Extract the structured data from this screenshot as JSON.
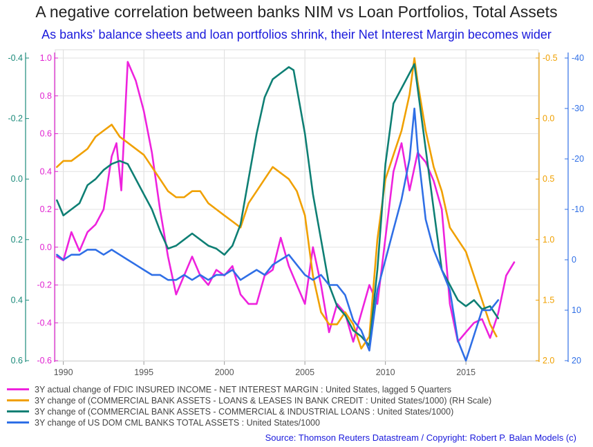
{
  "title": "A negative correlation between banks NIM vs Loan Portfolios, Total Assets",
  "subtitle": "As banks' balance sheets and loan portfolios shrink, their Net Interest Margin becomes wider",
  "source": "Source: Thomson Reuters Datastream / Copyright: Robert P. Balan Models (c)",
  "chart_data": {
    "type": "line",
    "x_range": [
      1989.5,
      2019.5
    ],
    "x_ticks": [
      1990,
      1995,
      2000,
      2005,
      2010,
      2015
    ],
    "axes": [
      {
        "id": "far_left",
        "side": "left",
        "color": "#1a8a7a",
        "range": [
          -0.4,
          0.6
        ],
        "inverted": true,
        "ticks": [
          "-0.4",
          "-0.2",
          "0.0",
          "0.2",
          "0.4",
          "0.6"
        ]
      },
      {
        "id": "left",
        "side": "left",
        "color": "#e020d0",
        "range": [
          -0.6,
          1.0
        ],
        "inverted": false,
        "ticks": [
          "1.0",
          "0.8",
          "0.6",
          "0.4",
          "0.2",
          "0.0",
          "-0.2",
          "-0.4",
          "-0.6"
        ]
      },
      {
        "id": "right",
        "side": "right",
        "color": "#f0a000",
        "range": [
          -0.5,
          2.0
        ],
        "inverted": true,
        "ticks": [
          "-0.5",
          "0.0",
          "0.5",
          "1.0",
          "1.5",
          "2.0"
        ]
      },
      {
        "id": "far_right",
        "side": "right",
        "color": "#2f6fe6",
        "range": [
          -40,
          20
        ],
        "inverted": true,
        "ticks": [
          "-40",
          "-30",
          "-20",
          "-10",
          "0",
          "10",
          "20"
        ]
      }
    ],
    "series": [
      {
        "name": "3Y actual change of FDIC INSURED INCOME - NET INTEREST MARGIN : United States, lagged 5 Quarters",
        "color": "#ee22dd",
        "axis": "left",
        "x": [
          1989.6,
          1990.0,
          1990.5,
          1991.0,
          1991.5,
          1992.0,
          1992.5,
          1993.0,
          1993.3,
          1993.6,
          1994.0,
          1994.5,
          1995.0,
          1995.5,
          1996.0,
          1996.5,
          1997.0,
          1997.5,
          1998.0,
          1998.5,
          1999.0,
          1999.5,
          2000.0,
          2000.5,
          2001.0,
          2001.5,
          2002.0,
          2002.5,
          2003.0,
          2003.5,
          2004.0,
          2004.5,
          2005.0,
          2005.5,
          2006.0,
          2006.5,
          2007.0,
          2007.5,
          2008.0,
          2008.5,
          2009.0,
          2009.5,
          2010.0,
          2010.5,
          2011.0,
          2011.5,
          2012.0,
          2012.5,
          2013.0,
          2013.5,
          2014.0,
          2014.5,
          2015.0,
          2015.5,
          2016.0,
          2016.5,
          2017.0,
          2017.5,
          2018.0
        ],
        "y": [
          -0.05,
          -0.07,
          0.08,
          -0.02,
          0.08,
          0.12,
          0.2,
          0.48,
          0.55,
          0.3,
          0.98,
          0.88,
          0.72,
          0.5,
          0.2,
          -0.05,
          -0.25,
          -0.15,
          -0.05,
          -0.15,
          -0.2,
          -0.12,
          -0.15,
          -0.1,
          -0.25,
          -0.3,
          -0.3,
          -0.15,
          -0.12,
          0.05,
          -0.1,
          -0.2,
          -0.3,
          0.0,
          -0.2,
          -0.45,
          -0.3,
          -0.35,
          -0.5,
          -0.35,
          -0.2,
          -0.3,
          0.05,
          0.4,
          0.55,
          0.3,
          0.5,
          0.45,
          0.35,
          0.2,
          -0.3,
          -0.5,
          -0.45,
          -0.4,
          -0.38,
          -0.48,
          -0.35,
          -0.15,
          -0.08
        ]
      },
      {
        "name": "3Y change of (COMMERCIAL BANK ASSETS - LOANS & LEASES IN BANK CREDIT : United States/1000) (RH Scale)",
        "color": "#f0a000",
        "axis": "right",
        "x": [
          1989.6,
          1990.0,
          1990.5,
          1991.0,
          1991.5,
          1992.0,
          1992.5,
          1993.0,
          1993.5,
          1994.0,
          1994.5,
          1995.0,
          1995.5,
          1996.0,
          1996.5,
          1997.0,
          1997.5,
          1998.0,
          1998.5,
          1999.0,
          1999.5,
          2000.0,
          2000.5,
          2001.0,
          2001.5,
          2002.0,
          2002.5,
          2003.0,
          2003.5,
          2004.0,
          2004.5,
          2005.0,
          2005.5,
          2006.0,
          2006.5,
          2007.0,
          2007.5,
          2008.0,
          2008.5,
          2009.0,
          2009.5,
          2010.0,
          2010.5,
          2011.0,
          2011.5,
          2011.8,
          2012.0,
          2012.5,
          2013.0,
          2013.5,
          2014.0,
          2014.5,
          2015.0,
          2015.5,
          2016.0,
          2016.5,
          2016.9
        ],
        "y": [
          0.4,
          0.35,
          0.35,
          0.3,
          0.25,
          0.15,
          0.1,
          0.05,
          0.15,
          0.2,
          0.25,
          0.3,
          0.4,
          0.5,
          0.6,
          0.65,
          0.65,
          0.6,
          0.6,
          0.7,
          0.75,
          0.8,
          0.85,
          0.9,
          0.7,
          0.6,
          0.5,
          0.4,
          0.45,
          0.5,
          0.6,
          0.8,
          1.3,
          1.6,
          1.7,
          1.7,
          1.6,
          1.7,
          1.9,
          1.8,
          1.0,
          0.5,
          0.3,
          0.1,
          -0.2,
          -0.5,
          -0.3,
          0.1,
          0.4,
          0.6,
          0.9,
          1.0,
          1.1,
          1.3,
          1.5,
          1.7,
          1.8
        ]
      },
      {
        "name": "3Y change of (COMMERCIAL BANK ASSETS - COMMERCIAL & INDUSTRIAL LOANS : United States/1000)",
        "color": "#0e7f74",
        "axis": "far_left",
        "x": [
          1989.6,
          1990.0,
          1990.5,
          1991.0,
          1991.5,
          1992.0,
          1992.5,
          1993.0,
          1993.5,
          1994.0,
          1994.5,
          1995.0,
          1995.5,
          1996.0,
          1996.5,
          1997.0,
          1997.5,
          1998.0,
          1998.5,
          1999.0,
          1999.5,
          2000.0,
          2000.5,
          2001.0,
          2001.5,
          2002.0,
          2002.5,
          2003.0,
          2003.5,
          2004.0,
          2004.3,
          2004.5,
          2005.0,
          2005.5,
          2006.0,
          2006.5,
          2007.0,
          2007.5,
          2008.0,
          2008.5,
          2009.0,
          2009.5,
          2010.0,
          2010.5,
          2011.0,
          2011.5,
          2011.8,
          2012.0,
          2012.5,
          2013.0,
          2013.5,
          2014.0,
          2014.5,
          2015.0,
          2015.5,
          2016.0,
          2016.5,
          2017.0
        ],
        "y": [
          0.07,
          0.12,
          0.1,
          0.08,
          0.02,
          0.0,
          -0.03,
          -0.05,
          -0.06,
          -0.05,
          0.0,
          0.05,
          0.1,
          0.17,
          0.23,
          0.22,
          0.2,
          0.18,
          0.2,
          0.22,
          0.23,
          0.25,
          0.22,
          0.15,
          0.0,
          -0.15,
          -0.27,
          -0.33,
          -0.35,
          -0.37,
          -0.36,
          -0.3,
          -0.15,
          0.05,
          0.2,
          0.35,
          0.42,
          0.45,
          0.5,
          0.52,
          0.55,
          0.3,
          -0.05,
          -0.25,
          -0.3,
          -0.35,
          -0.38,
          -0.3,
          -0.1,
          0.1,
          0.3,
          0.35,
          0.4,
          0.42,
          0.4,
          0.43,
          0.42,
          0.46
        ]
      },
      {
        "name": "3Y change of US DOM CML BANKS TOTAL ASSETS : United States/1000",
        "color": "#2f6fe6",
        "axis": "far_right",
        "x": [
          1989.6,
          1990.0,
          1990.5,
          1991.0,
          1991.5,
          1992.0,
          1992.5,
          1993.0,
          1993.5,
          1994.0,
          1994.5,
          1995.0,
          1995.5,
          1996.0,
          1996.5,
          1997.0,
          1997.5,
          1998.0,
          1998.5,
          1999.0,
          1999.5,
          2000.0,
          2000.5,
          2001.0,
          2001.5,
          2002.0,
          2002.5,
          2003.0,
          2003.5,
          2004.0,
          2004.5,
          2005.0,
          2005.5,
          2006.0,
          2006.5,
          2007.0,
          2007.5,
          2008.0,
          2008.5,
          2009.0,
          2009.5,
          2010.0,
          2010.5,
          2011.0,
          2011.5,
          2011.8,
          2012.0,
          2012.5,
          2013.0,
          2013.5,
          2014.0,
          2014.5,
          2015.0,
          2015.5,
          2016.0,
          2016.5,
          2017.0
        ],
        "y": [
          -1,
          0,
          -1,
          -1,
          -2,
          -2,
          -1,
          -2,
          -1,
          0,
          1,
          2,
          3,
          3,
          4,
          4,
          3,
          4,
          3,
          4,
          3,
          3,
          2,
          4,
          3,
          2,
          3,
          1,
          0,
          -1,
          1,
          3,
          4,
          3,
          5,
          5,
          7,
          12,
          14,
          18,
          6,
          0,
          -6,
          -12,
          -20,
          -30,
          -22,
          -8,
          -2,
          2,
          6,
          16,
          20,
          15,
          10,
          10,
          8
        ]
      }
    ]
  }
}
